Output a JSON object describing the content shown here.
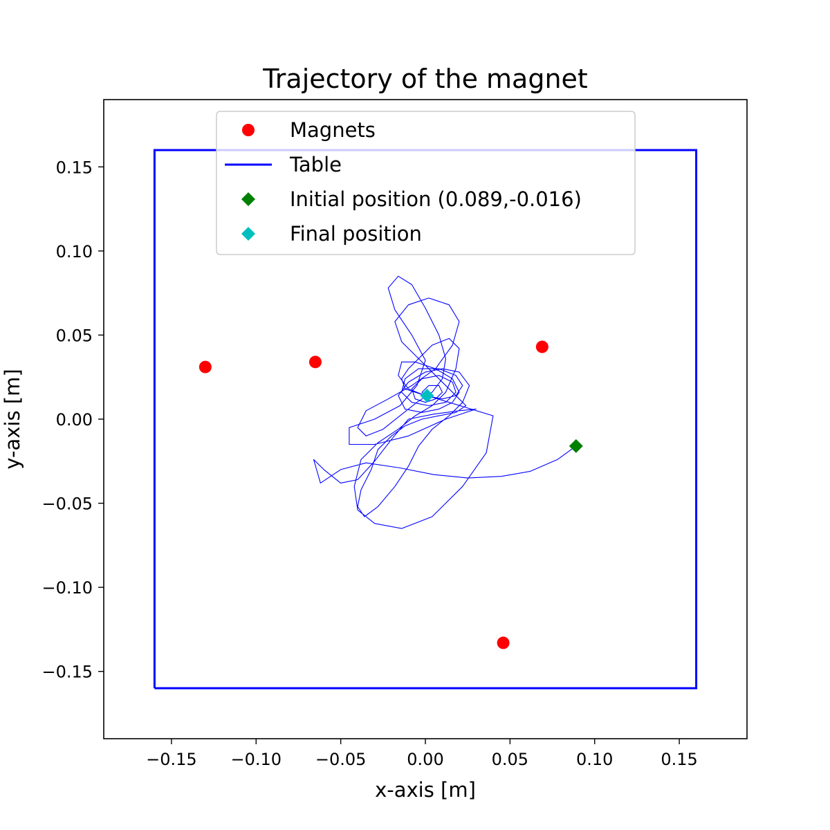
{
  "chart_data": {
    "type": "scatter",
    "title": "Trajectory of the magnet",
    "xlabel": "x-axis [m]",
    "ylabel": "y-axis [m]",
    "xlim": [
      -0.19,
      0.19
    ],
    "ylim": [
      -0.19,
      0.19
    ],
    "x_ticks": [
      -0.15,
      -0.1,
      -0.05,
      0.0,
      0.05,
      0.1,
      0.15
    ],
    "y_ticks": [
      -0.15,
      -0.1,
      -0.05,
      0.0,
      0.05,
      0.1,
      0.15
    ],
    "x_tick_labels": [
      "−0.15",
      "−0.10",
      "−0.05",
      "0.00",
      "0.05",
      "0.10",
      "0.15"
    ],
    "y_tick_labels": [
      "−0.15",
      "−0.10",
      "−0.05",
      "0.00",
      "0.05",
      "0.10",
      "0.15"
    ],
    "grid": false,
    "legend_position": "top-center",
    "series": [
      {
        "name": "Magnets",
        "kind": "marker",
        "marker": "circle",
        "color": "#ff0000",
        "points": [
          [
            -0.13,
            0.031
          ],
          [
            -0.065,
            0.034
          ],
          [
            0.069,
            0.043
          ],
          [
            0.046,
            -0.133
          ]
        ]
      },
      {
        "name": "Table",
        "kind": "line",
        "color": "#0000ff",
        "points": [
          [
            -0.16,
            -0.16
          ],
          [
            0.16,
            -0.16
          ],
          [
            0.16,
            0.16
          ],
          [
            -0.16,
            0.16
          ],
          [
            -0.16,
            -0.16
          ]
        ]
      },
      {
        "name": "Initial position (0.089,-0.016)",
        "kind": "marker",
        "marker": "diamond",
        "color": "#008000",
        "points": [
          [
            0.089,
            -0.016
          ]
        ]
      },
      {
        "name": "Final position",
        "kind": "marker",
        "marker": "diamond",
        "color": "#00bfbf",
        "points": [
          [
            0.001,
            0.014
          ]
        ]
      }
    ],
    "trajectory": {
      "color": "#0000ff",
      "points": [
        [
          0.089,
          -0.016
        ],
        [
          0.078,
          -0.024
        ],
        [
          0.062,
          -0.031
        ],
        [
          0.045,
          -0.034
        ],
        [
          0.025,
          -0.035
        ],
        [
          0.005,
          -0.033
        ],
        [
          -0.015,
          -0.029
        ],
        [
          -0.035,
          -0.026
        ],
        [
          -0.05,
          -0.03
        ],
        [
          -0.062,
          -0.038
        ],
        [
          -0.066,
          -0.024
        ],
        [
          -0.06,
          -0.03
        ],
        [
          -0.05,
          -0.038
        ],
        [
          -0.04,
          -0.036
        ],
        [
          -0.03,
          -0.025
        ],
        [
          -0.02,
          -0.012
        ],
        [
          -0.01,
          0.0
        ],
        [
          0.005,
          0.003
        ],
        [
          0.02,
          0.005
        ],
        [
          0.03,
          0.006
        ],
        [
          0.012,
          0.0
        ],
        [
          -0.01,
          -0.01
        ],
        [
          -0.03,
          -0.015
        ],
        [
          -0.045,
          -0.015
        ],
        [
          -0.045,
          -0.005
        ],
        [
          -0.03,
          0.0
        ],
        [
          -0.015,
          0.008
        ],
        [
          -0.005,
          0.02
        ],
        [
          0.0,
          0.035
        ],
        [
          -0.008,
          0.05
        ],
        [
          -0.018,
          0.065
        ],
        [
          -0.022,
          0.078
        ],
        [
          -0.016,
          0.085
        ],
        [
          -0.008,
          0.08
        ],
        [
          0.0,
          0.066
        ],
        [
          0.008,
          0.05
        ],
        [
          0.012,
          0.036
        ],
        [
          0.01,
          0.024
        ],
        [
          0.004,
          0.016
        ],
        [
          -0.005,
          0.01
        ],
        [
          -0.015,
          0.002
        ],
        [
          -0.025,
          -0.006
        ],
        [
          -0.035,
          -0.01
        ],
        [
          -0.04,
          -0.005
        ],
        [
          -0.035,
          0.005
        ],
        [
          -0.022,
          0.012
        ],
        [
          -0.008,
          0.02
        ],
        [
          0.006,
          0.03
        ],
        [
          0.016,
          0.044
        ],
        [
          0.02,
          0.058
        ],
        [
          0.014,
          0.068
        ],
        [
          0.002,
          0.072
        ],
        [
          -0.01,
          0.068
        ],
        [
          -0.018,
          0.058
        ],
        [
          -0.014,
          0.046
        ],
        [
          -0.004,
          0.036
        ],
        [
          0.006,
          0.026
        ],
        [
          0.014,
          0.018
        ],
        [
          0.02,
          0.012
        ],
        [
          0.024,
          0.008
        ],
        [
          0.018,
          0.004
        ],
        [
          0.008,
          0.002
        ],
        [
          -0.002,
          0.0
        ],
        [
          -0.012,
          -0.004
        ],
        [
          -0.02,
          -0.01
        ],
        [
          -0.028,
          -0.018
        ],
        [
          -0.032,
          -0.03
        ],
        [
          -0.038,
          -0.042
        ],
        [
          -0.04,
          -0.052
        ],
        [
          -0.036,
          -0.058
        ],
        [
          -0.028,
          -0.052
        ],
        [
          -0.018,
          -0.04
        ],
        [
          -0.01,
          -0.028
        ],
        [
          -0.004,
          -0.016
        ],
        [
          0.004,
          -0.006
        ],
        [
          0.014,
          0.002
        ],
        [
          0.022,
          0.01
        ],
        [
          0.026,
          0.02
        ],
        [
          0.02,
          0.028
        ],
        [
          0.01,
          0.03
        ],
        [
          0.0,
          0.028
        ],
        [
          -0.01,
          0.022
        ],
        [
          -0.016,
          0.014
        ],
        [
          -0.012,
          0.006
        ],
        [
          -0.002,
          0.004
        ],
        [
          0.008,
          0.006
        ],
        [
          0.016,
          0.01
        ],
        [
          0.02,
          0.016
        ],
        [
          0.016,
          0.024
        ],
        [
          0.006,
          0.03
        ],
        [
          -0.006,
          0.034
        ],
        [
          -0.014,
          0.034
        ],
        [
          -0.016,
          0.026
        ],
        [
          -0.01,
          0.018
        ],
        [
          0.0,
          0.014
        ],
        [
          0.01,
          0.012
        ],
        [
          0.018,
          0.014
        ],
        [
          0.022,
          0.02
        ],
        [
          0.018,
          0.026
        ],
        [
          0.008,
          0.03
        ],
        [
          -0.004,
          0.03
        ],
        [
          -0.012,
          0.024
        ],
        [
          -0.014,
          0.016
        ],
        [
          -0.008,
          0.01
        ],
        [
          0.002,
          0.008
        ],
        [
          0.012,
          0.01
        ],
        [
          0.018,
          0.016
        ],
        [
          0.016,
          0.022
        ],
        [
          0.008,
          0.026
        ],
        [
          -0.002,
          0.024
        ],
        [
          -0.008,
          0.018
        ],
        [
          -0.006,
          0.012
        ],
        [
          0.0,
          0.01
        ],
        [
          0.006,
          0.012
        ],
        [
          0.01,
          0.016
        ],
        [
          0.008,
          0.02
        ],
        [
          0.002,
          0.02
        ],
        [
          -0.002,
          0.016
        ],
        [
          0.0,
          0.014
        ],
        [
          0.001,
          0.014
        ],
        [
          0.04,
          0.002
        ],
        [
          0.036,
          -0.02
        ],
        [
          0.022,
          -0.04
        ],
        [
          0.004,
          -0.058
        ],
        [
          -0.014,
          -0.065
        ],
        [
          -0.03,
          -0.062
        ],
        [
          -0.04,
          -0.054
        ],
        [
          -0.042,
          -0.04
        ],
        [
          -0.038,
          -0.024
        ],
        [
          -0.028,
          -0.014
        ],
        [
          -0.016,
          -0.006
        ],
        [
          -0.006,
          0.002
        ],
        [
          0.004,
          0.008
        ],
        [
          0.012,
          0.016
        ],
        [
          0.018,
          0.03
        ],
        [
          0.02,
          0.042
        ],
        [
          0.014,
          0.048
        ],
        [
          0.004,
          0.044
        ],
        [
          -0.004,
          0.036
        ],
        [
          -0.01,
          0.03
        ],
        [
          -0.014,
          0.024
        ],
        [
          -0.012,
          0.018
        ],
        [
          -0.006,
          0.016
        ],
        [
          0.0,
          0.014
        ],
        [
          0.001,
          0.014
        ]
      ]
    }
  }
}
